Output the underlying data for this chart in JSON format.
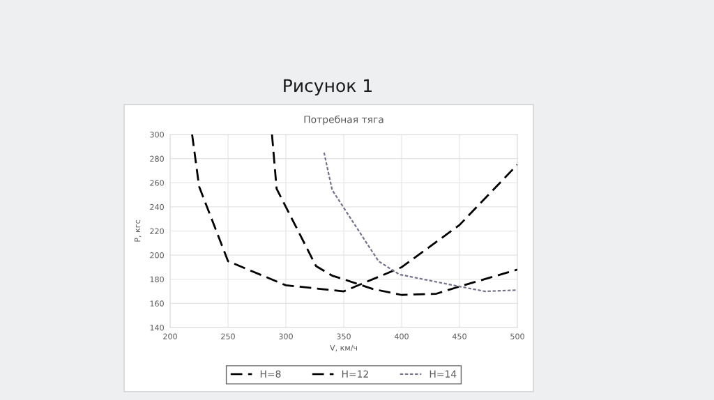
{
  "chart_data": {
    "type": "line",
    "title": "Потребная тяга",
    "xlabel": "V, км/ч",
    "ylabel": "P, кгс",
    "annotations": [
      "Рисунок 1"
    ],
    "xlim": [
      200,
      500
    ],
    "xticks": [
      200,
      250,
      300,
      350,
      400,
      450,
      500
    ],
    "ylim": [
      140,
      300
    ],
    "yticks": [
      140,
      160,
      180,
      200,
      220,
      240,
      260,
      280,
      300
    ],
    "grid": true,
    "legend": "bottom",
    "series": [
      {
        "name": "H=8",
        "color": "#000000",
        "line_style": "dashed",
        "x": [
          219,
          225,
          250,
          300,
          350,
          400,
          450,
          500
        ],
        "values": [
          300,
          257,
          195,
          175,
          170,
          190,
          225,
          275
        ]
      },
      {
        "name": "H=12",
        "color": "#000000",
        "line_style": "dashed",
        "x": [
          288,
          292,
          326,
          340,
          350,
          375,
          400,
          430,
          450,
          500
        ],
        "values": [
          300,
          255,
          191,
          183,
          180,
          172,
          167,
          168,
          174,
          188
        ]
      },
      {
        "name": "H=14",
        "color": "#77708a",
        "line_style": "dotted",
        "x": [
          333,
          340,
          380,
          398,
          450,
          472,
          500
        ],
        "values": [
          285,
          254,
          195,
          184,
          174,
          170,
          171
        ]
      }
    ]
  }
}
